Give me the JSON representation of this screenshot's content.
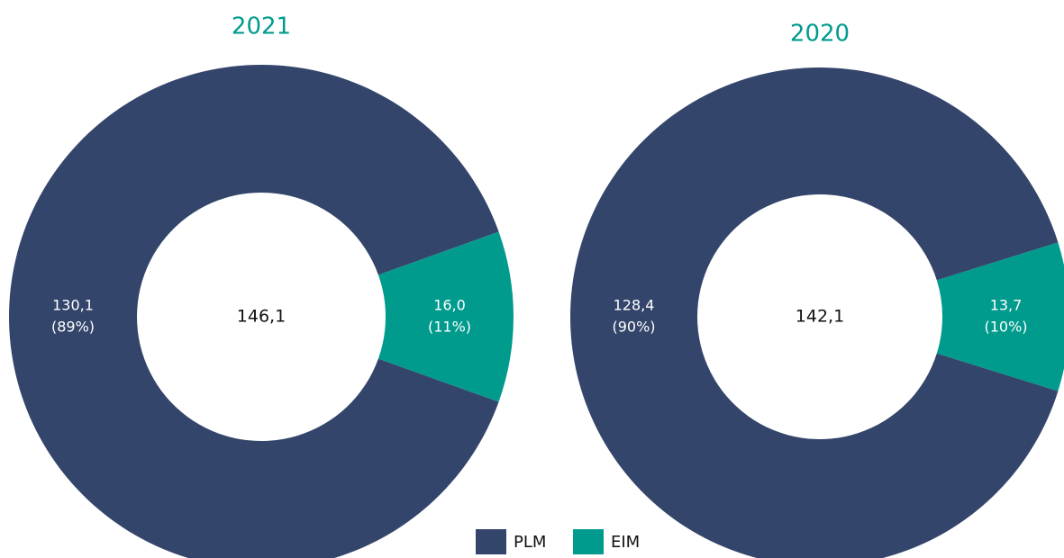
{
  "chart_data": [
    {
      "type": "donut",
      "title": "2021",
      "categories": [
        "PLM",
        "EIM"
      ],
      "values": [
        130.1,
        16.0
      ],
      "value_labels": [
        "130,1",
        "16,0"
      ],
      "percent_labels": [
        "(89%)",
        "(11%)"
      ],
      "center_label": "146,1",
      "colors": [
        "#34456b",
        "#009b8d"
      ]
    },
    {
      "type": "donut",
      "title": "2020",
      "categories": [
        "PLM",
        "EIM"
      ],
      "values": [
        128.4,
        13.7
      ],
      "value_labels": [
        "128,4",
        "13,7"
      ],
      "percent_labels": [
        "(90%)",
        "(10%)"
      ],
      "center_label": "142,1",
      "colors": [
        "#34456b",
        "#009b8d"
      ]
    }
  ]
}
